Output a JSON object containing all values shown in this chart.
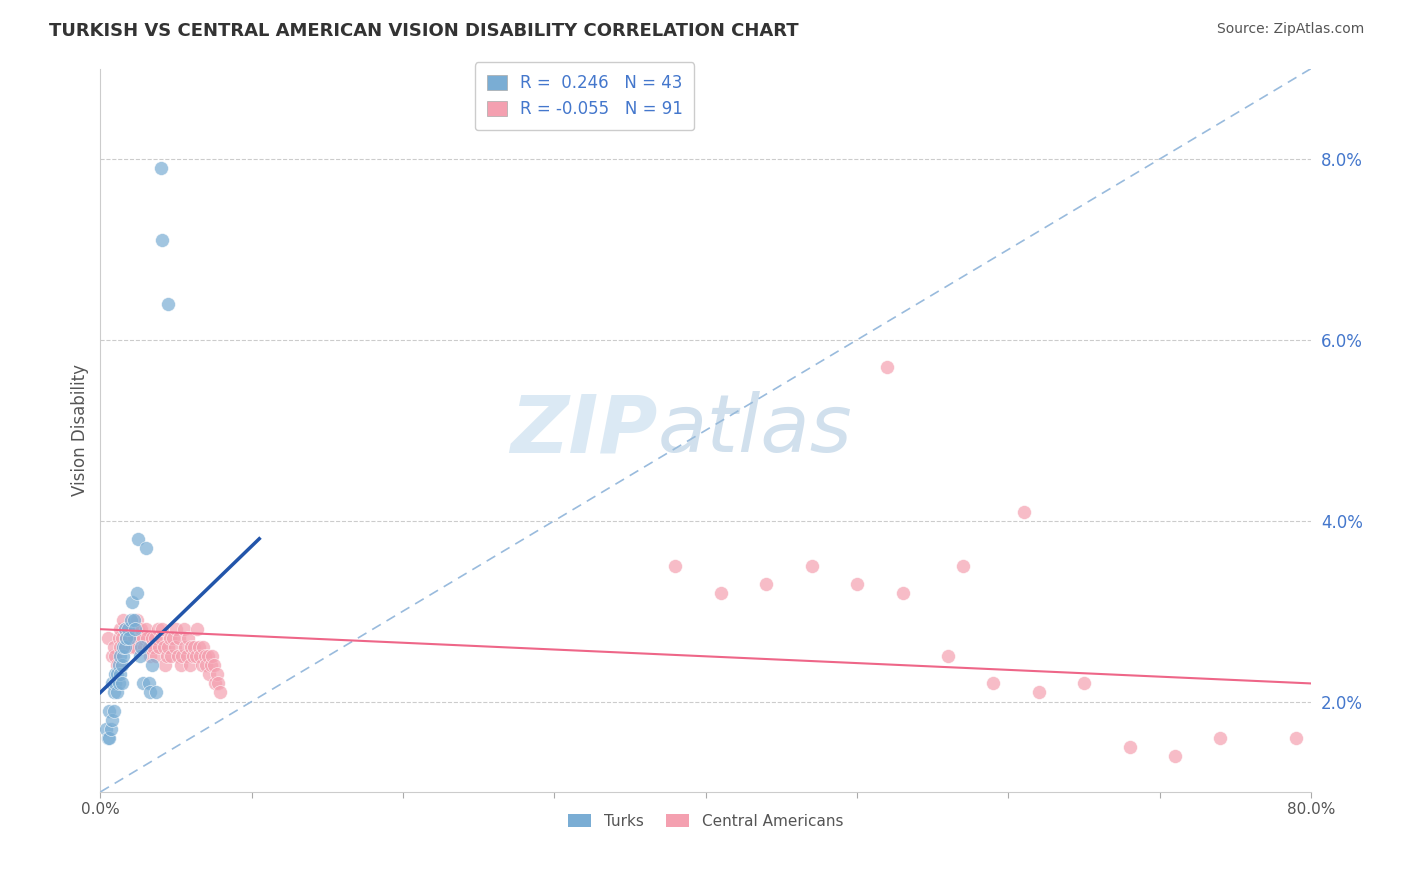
{
  "title": "TURKISH VS CENTRAL AMERICAN VISION DISABILITY CORRELATION CHART",
  "source": "Source: ZipAtlas.com",
  "ylabel": "Vision Disability",
  "ytick_vals": [
    0.02,
    0.04,
    0.06,
    0.08
  ],
  "xlim": [
    0.0,
    0.8
  ],
  "ylim": [
    0.01,
    0.09
  ],
  "legend_blue_label": "R =  0.246   N = 43",
  "legend_pink_label": "R = -0.055   N = 91",
  "legend_bottom_blue": "Turks",
  "legend_bottom_pink": "Central Americans",
  "blue_color": "#7aadd4",
  "pink_color": "#f4a0b0",
  "blue_line_color": "#2255aa",
  "pink_line_color": "#ee6688",
  "dashed_line_color": "#99bbdd",
  "background_color": "#FFFFFF",
  "grid_color": "#cccccc",
  "title_color": "#333333",
  "blue_scatter_x": [
    0.004,
    0.005,
    0.006,
    0.006,
    0.007,
    0.008,
    0.008,
    0.009,
    0.009,
    0.01,
    0.01,
    0.011,
    0.011,
    0.012,
    0.012,
    0.013,
    0.013,
    0.014,
    0.014,
    0.015,
    0.015,
    0.016,
    0.016,
    0.017,
    0.018,
    0.019,
    0.02,
    0.021,
    0.022,
    0.023,
    0.024,
    0.025,
    0.026,
    0.027,
    0.028,
    0.03,
    0.032,
    0.033,
    0.034,
    0.037,
    0.04,
    0.041,
    0.045
  ],
  "blue_scatter_y": [
    0.017,
    0.016,
    0.016,
    0.019,
    0.017,
    0.018,
    0.022,
    0.019,
    0.021,
    0.022,
    0.023,
    0.023,
    0.021,
    0.024,
    0.022,
    0.023,
    0.025,
    0.022,
    0.024,
    0.025,
    0.026,
    0.026,
    0.028,
    0.027,
    0.028,
    0.027,
    0.029,
    0.031,
    0.029,
    0.028,
    0.032,
    0.038,
    0.025,
    0.026,
    0.022,
    0.037,
    0.022,
    0.021,
    0.024,
    0.021,
    0.079,
    0.071,
    0.064
  ],
  "pink_scatter_x": [
    0.005,
    0.008,
    0.009,
    0.01,
    0.011,
    0.012,
    0.013,
    0.013,
    0.014,
    0.015,
    0.016,
    0.017,
    0.018,
    0.019,
    0.02,
    0.021,
    0.022,
    0.023,
    0.024,
    0.025,
    0.026,
    0.027,
    0.028,
    0.029,
    0.03,
    0.031,
    0.032,
    0.033,
    0.034,
    0.035,
    0.036,
    0.037,
    0.038,
    0.039,
    0.04,
    0.041,
    0.042,
    0.043,
    0.044,
    0.045,
    0.046,
    0.047,
    0.048,
    0.049,
    0.05,
    0.051,
    0.052,
    0.053,
    0.054,
    0.055,
    0.056,
    0.057,
    0.058,
    0.059,
    0.06,
    0.061,
    0.062,
    0.063,
    0.064,
    0.065,
    0.066,
    0.067,
    0.068,
    0.069,
    0.07,
    0.071,
    0.072,
    0.073,
    0.074,
    0.075,
    0.076,
    0.077,
    0.078,
    0.079,
    0.38,
    0.41,
    0.44,
    0.47,
    0.5,
    0.53,
    0.56,
    0.59,
    0.62,
    0.65,
    0.68,
    0.71,
    0.74,
    0.79,
    0.61,
    0.57,
    0.52
  ],
  "pink_scatter_y": [
    0.027,
    0.025,
    0.026,
    0.025,
    0.024,
    0.027,
    0.026,
    0.028,
    0.027,
    0.029,
    0.028,
    0.027,
    0.028,
    0.027,
    0.028,
    0.026,
    0.027,
    0.026,
    0.029,
    0.028,
    0.027,
    0.028,
    0.027,
    0.026,
    0.028,
    0.027,
    0.026,
    0.025,
    0.027,
    0.026,
    0.027,
    0.025,
    0.028,
    0.026,
    0.027,
    0.028,
    0.026,
    0.024,
    0.025,
    0.026,
    0.027,
    0.025,
    0.027,
    0.026,
    0.028,
    0.025,
    0.027,
    0.024,
    0.025,
    0.028,
    0.026,
    0.025,
    0.027,
    0.024,
    0.026,
    0.025,
    0.026,
    0.025,
    0.028,
    0.026,
    0.025,
    0.024,
    0.026,
    0.025,
    0.024,
    0.025,
    0.023,
    0.024,
    0.025,
    0.024,
    0.022,
    0.023,
    0.022,
    0.021,
    0.035,
    0.032,
    0.033,
    0.035,
    0.033,
    0.032,
    0.025,
    0.022,
    0.021,
    0.022,
    0.015,
    0.014,
    0.016,
    0.016,
    0.041,
    0.035,
    0.057
  ]
}
